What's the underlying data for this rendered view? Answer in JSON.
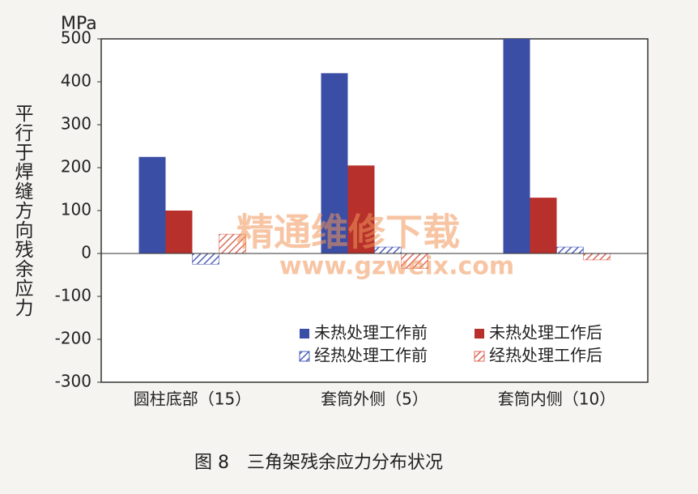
{
  "chart_data": {
    "type": "bar",
    "y_unit": "MPa",
    "y_label": "平行于焊缝方向残余应力",
    "caption": "图 8　三角架残余应力分布状况",
    "watermark": [
      "精通维修下载",
      "www.gzweix.com"
    ],
    "categories": [
      "圆柱底部（15）",
      "套筒外侧（5）",
      "套筒内侧（10）"
    ],
    "series": [
      {
        "name": "未热处理工作前",
        "color": "#3b4ea6",
        "hatch": false,
        "values": [
          225,
          420,
          500
        ]
      },
      {
        "name": "未热处理工作后",
        "color": "#b7302b",
        "hatch": false,
        "values": [
          100,
          205,
          130
        ]
      },
      {
        "name": "经热处理工作前",
        "color": "#4e60b8",
        "hatch": true,
        "values": [
          -25,
          15,
          15
        ]
      },
      {
        "name": "经热处理工作后",
        "color": "#dc6a5a",
        "hatch": true,
        "values": [
          45,
          -35,
          -15
        ]
      }
    ],
    "ylim": [
      -300,
      500
    ],
    "yticks": [
      -300,
      -200,
      -100,
      0,
      100,
      200,
      300,
      400,
      500
    ]
  }
}
